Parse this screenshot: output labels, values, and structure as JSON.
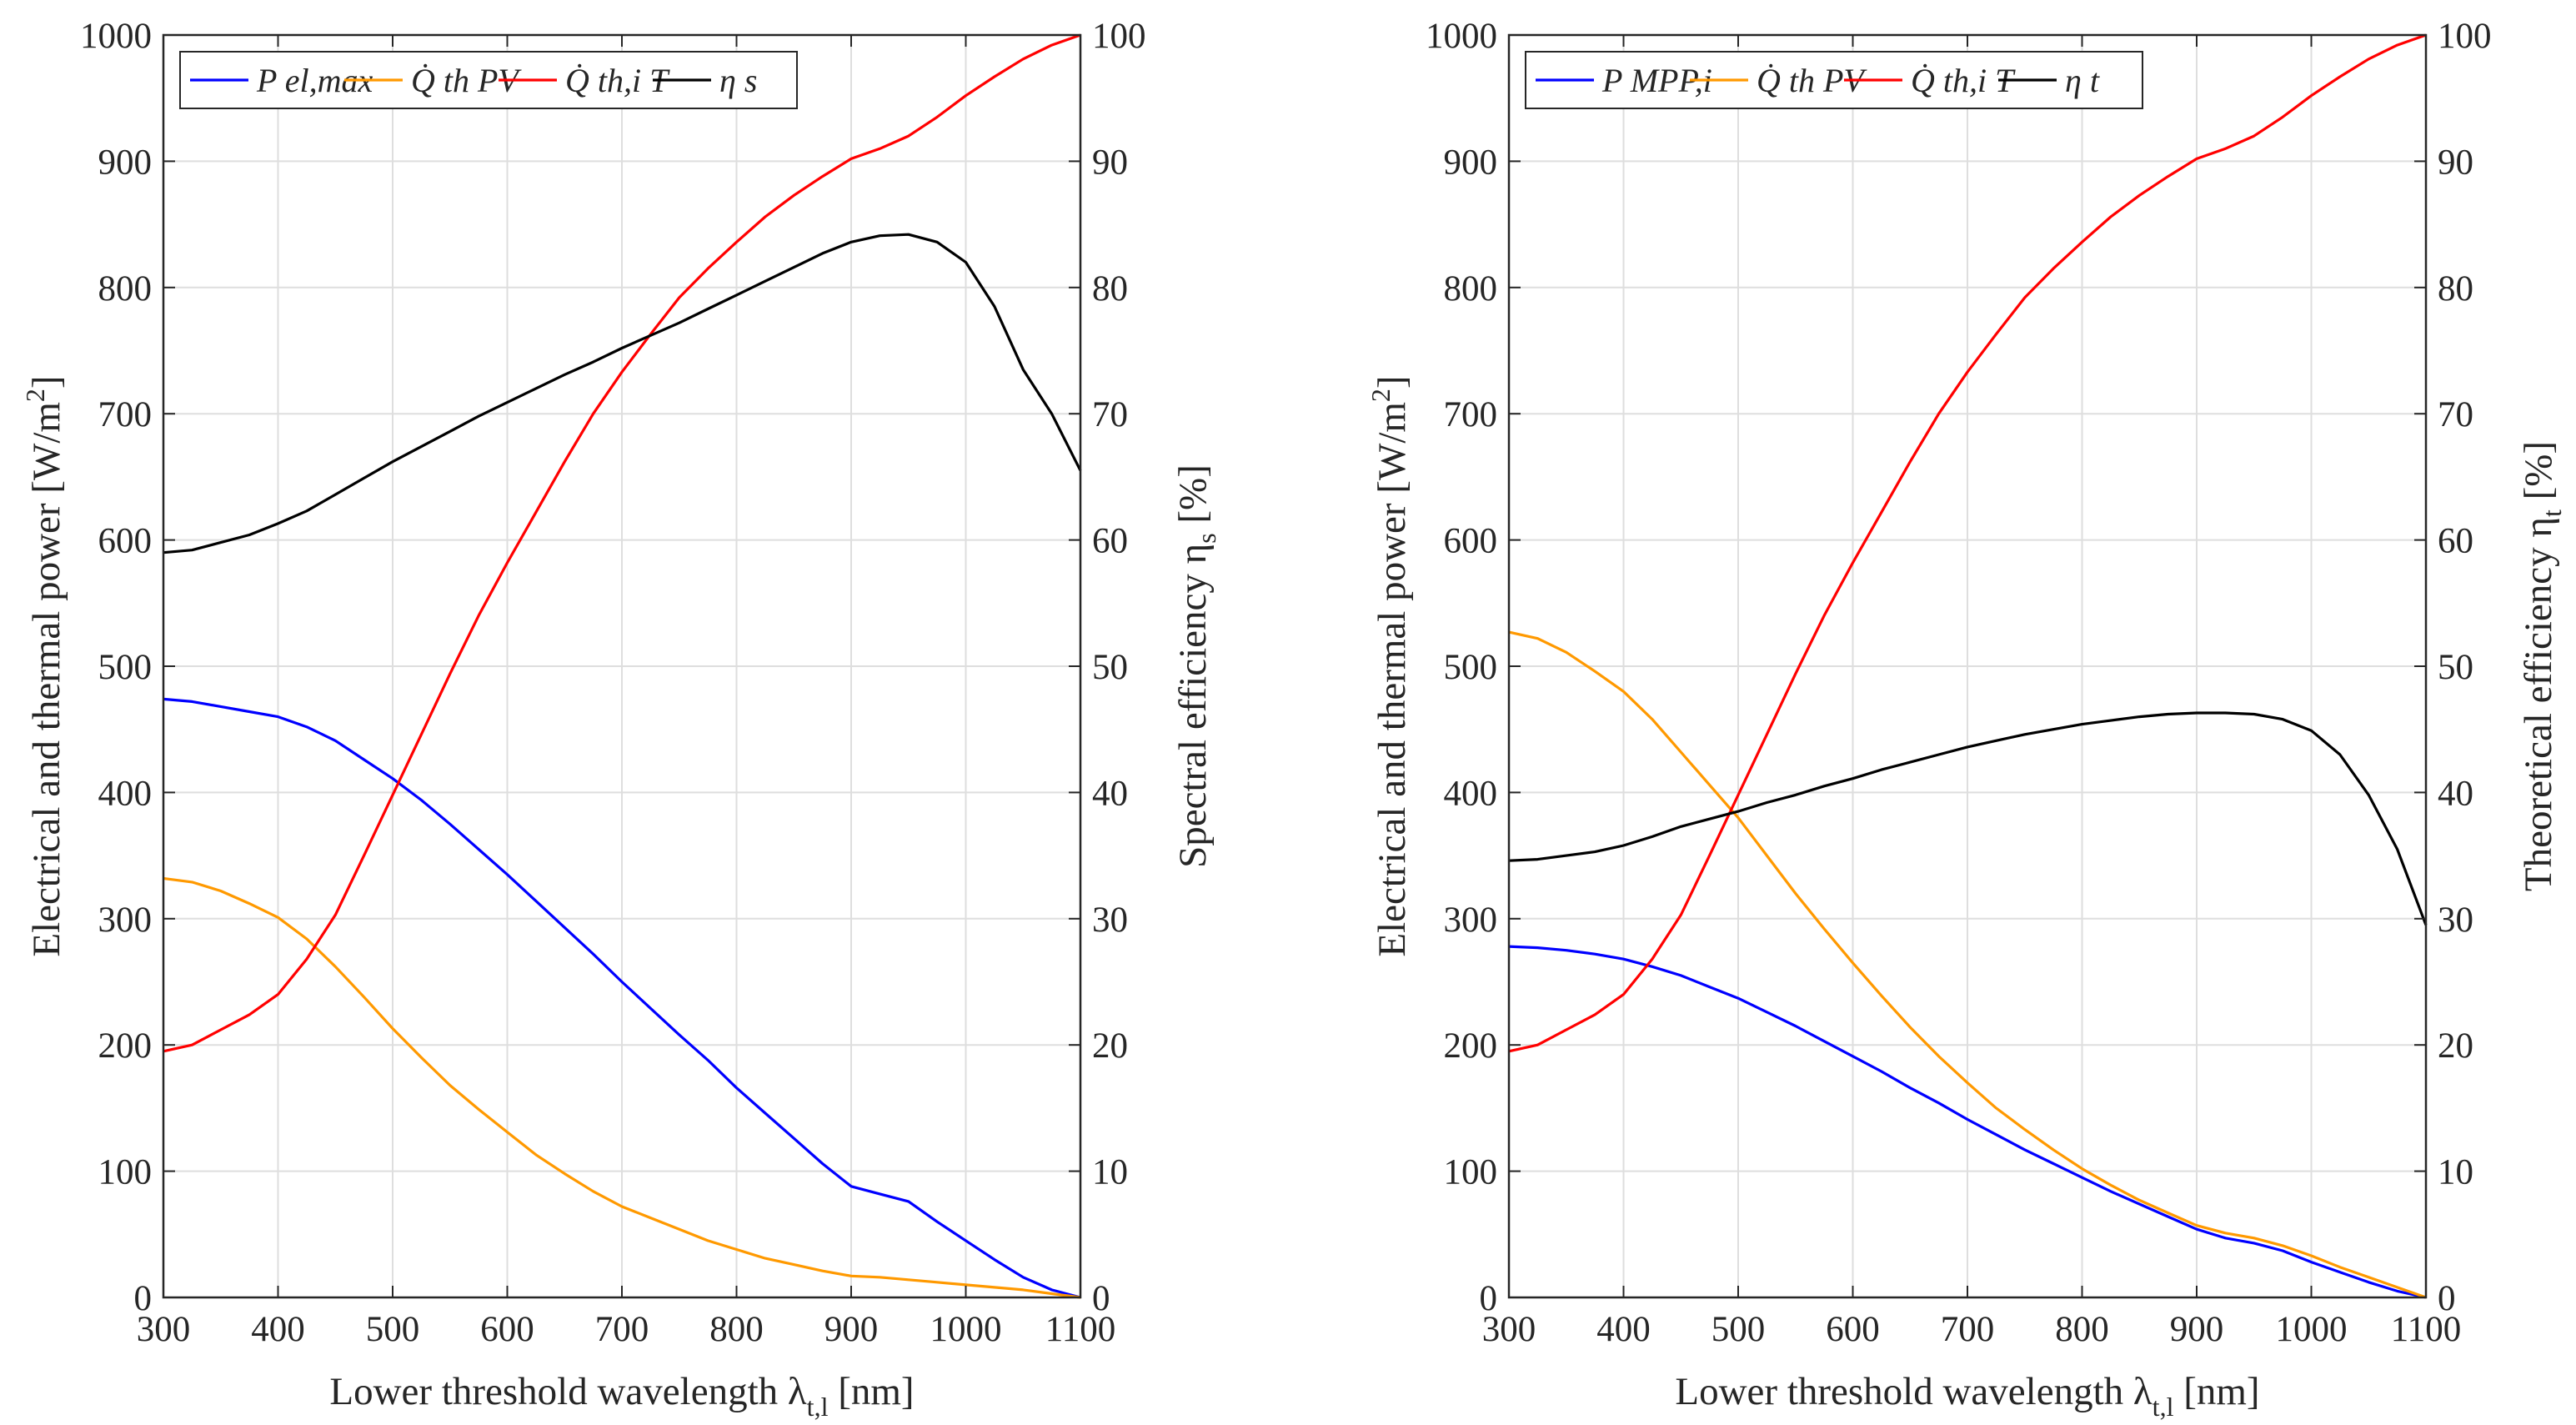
{
  "charts": [
    {
      "id": "left",
      "xlabel": "Lower threshold wavelength λt,l [nm]",
      "xlabel_main": "Lower threshold wavelength λ",
      "xlabel_sub": "t,l",
      "xlabel_tail": " [nm]",
      "ylabel_left": "Electrical and thermal power [W/m2]",
      "ylabel_left_main": "Electrical and thermal power [W/m",
      "ylabel_left_sup": "2",
      "ylabel_left_tail": "]",
      "ylabel_right": "Spectral efficiency ηs [%]",
      "ylabel_right_main": "Spectral efficiency η",
      "ylabel_right_sub": "s",
      "ylabel_right_tail": " [%]",
      "legend": [
        "P el,max",
        "Q̇ th PV",
        "Q̇ th,i T",
        "η s"
      ]
    },
    {
      "id": "right",
      "xlabel": "Lower threshold wavelength λt,l [nm]",
      "xlabel_main": "Lower threshold wavelength λ",
      "xlabel_sub": "t,l",
      "xlabel_tail": " [nm]",
      "ylabel_left": "Electrical and thermal power [W/m2]",
      "ylabel_left_main": "Electrical and thermal power [W/m",
      "ylabel_left_sup": "2",
      "ylabel_left_tail": "]",
      "ylabel_right": "Theoretical efficiency ηt [%]",
      "ylabel_right_main": "Theoretical efficiency η",
      "ylabel_right_sub": "t",
      "ylabel_right_tail": " [%]",
      "legend": [
        "P MPP,i",
        "Q̇ th PV",
        "Q̇ th,i T",
        "η t"
      ]
    }
  ],
  "chart_data": [
    {
      "type": "line",
      "x": [
        300,
        325,
        350,
        375,
        400,
        425,
        450,
        475,
        500,
        525,
        550,
        575,
        600,
        625,
        650,
        675,
        700,
        725,
        750,
        775,
        800,
        825,
        850,
        875,
        900,
        925,
        950,
        975,
        1000,
        1025,
        1050,
        1075,
        1100
      ],
      "xticks": [
        300,
        400,
        500,
        600,
        700,
        800,
        900,
        1000,
        1100
      ],
      "xlim": [
        300,
        1100
      ],
      "ylim_left": [
        0,
        1000
      ],
      "yticks_left": [
        0,
        100,
        200,
        300,
        400,
        500,
        600,
        700,
        800,
        900,
        1000
      ],
      "ylim_right": [
        0,
        100
      ],
      "yticks_right": [
        0,
        10,
        20,
        30,
        40,
        50,
        60,
        70,
        80,
        90,
        100
      ],
      "grid": true,
      "legend_position": "top-left",
      "series": [
        {
          "name": "P el,max",
          "axis": "left",
          "color": "#0000ff",
          "values": [
            474,
            472,
            468,
            464,
            460,
            452,
            441,
            426,
            411,
            394,
            375,
            355,
            335,
            314,
            293,
            272,
            250,
            229,
            208,
            188,
            166,
            146,
            126,
            106,
            88,
            82,
            76,
            60,
            45,
            30,
            16,
            6,
            0
          ]
        },
        {
          "name": "Q̇ th PV",
          "axis": "left",
          "color": "#ff9900",
          "values": [
            332,
            329,
            322,
            312,
            301,
            284,
            262,
            238,
            213,
            190,
            168,
            149,
            131,
            113,
            98,
            84,
            72,
            63,
            54,
            45,
            38,
            31,
            26,
            21,
            17,
            16,
            14,
            12,
            10,
            8,
            6,
            3,
            0
          ]
        },
        {
          "name": "Q̇ th,i T",
          "axis": "left",
          "color": "#ff0000",
          "values": [
            195,
            200,
            212,
            224,
            240,
            268,
            303,
            350,
            398,
            446,
            494,
            540,
            582,
            622,
            662,
            700,
            733,
            763,
            792,
            815,
            836,
            856,
            873,
            888,
            902,
            910,
            920,
            935,
            952,
            967,
            981,
            992,
            1000
          ]
        },
        {
          "name": "η s",
          "axis": "right",
          "color": "#000000",
          "values": [
            59,
            59.2,
            59.8,
            60.4,
            61.3,
            62.3,
            63.6,
            64.9,
            66.2,
            67.4,
            68.6,
            69.8,
            70.9,
            72.0,
            73.1,
            74.1,
            75.2,
            76.2,
            77.2,
            78.3,
            79.4,
            80.5,
            81.6,
            82.7,
            83.6,
            84.1,
            84.2,
            83.6,
            82.0,
            78.5,
            73.5,
            70.0,
            65.5
          ]
        }
      ]
    },
    {
      "type": "line",
      "x": [
        300,
        325,
        350,
        375,
        400,
        425,
        450,
        475,
        500,
        525,
        550,
        575,
        600,
        625,
        650,
        675,
        700,
        725,
        750,
        775,
        800,
        825,
        850,
        875,
        900,
        925,
        950,
        975,
        1000,
        1025,
        1050,
        1075,
        1100
      ],
      "xticks": [
        300,
        400,
        500,
        600,
        700,
        800,
        900,
        1000,
        1100
      ],
      "xlim": [
        300,
        1100
      ],
      "ylim_left": [
        0,
        1000
      ],
      "yticks_left": [
        0,
        100,
        200,
        300,
        400,
        500,
        600,
        700,
        800,
        900,
        1000
      ],
      "ylim_right": [
        0,
        100
      ],
      "yticks_right": [
        0,
        10,
        20,
        30,
        40,
        50,
        60,
        70,
        80,
        90,
        100
      ],
      "grid": true,
      "legend_position": "top-left",
      "series": [
        {
          "name": "P MPP,i",
          "axis": "left",
          "color": "#0000ff",
          "values": [
            278,
            277,
            275,
            272,
            268,
            262,
            255,
            246,
            237,
            226,
            215,
            203,
            191,
            179,
            166,
            154,
            141,
            129,
            117,
            106,
            95,
            84,
            74,
            64,
            54,
            47,
            43,
            37,
            28,
            20,
            12,
            5,
            0
          ]
        },
        {
          "name": "Q̇ th PV",
          "axis": "left",
          "color": "#ff9900",
          "values": [
            527,
            522,
            511,
            496,
            480,
            458,
            432,
            406,
            380,
            350,
            320,
            292,
            265,
            239,
            214,
            191,
            170,
            150,
            133,
            117,
            102,
            89,
            77,
            67,
            57,
            51,
            47,
            41,
            33,
            24,
            16,
            8,
            0
          ]
        },
        {
          "name": "Q̇ th,i T",
          "axis": "left",
          "color": "#ff0000",
          "values": [
            195,
            200,
            212,
            224,
            240,
            268,
            303,
            350,
            398,
            446,
            494,
            540,
            582,
            622,
            662,
            700,
            733,
            763,
            792,
            815,
            836,
            856,
            873,
            888,
            902,
            910,
            920,
            935,
            952,
            967,
            981,
            992,
            1000
          ]
        },
        {
          "name": "η t",
          "axis": "right",
          "color": "#000000",
          "values": [
            34.6,
            34.7,
            35.0,
            35.3,
            35.8,
            36.5,
            37.3,
            37.9,
            38.5,
            39.2,
            39.8,
            40.5,
            41.1,
            41.8,
            42.4,
            43.0,
            43.6,
            44.1,
            44.6,
            45.0,
            45.4,
            45.7,
            46.0,
            46.2,
            46.3,
            46.3,
            46.2,
            45.8,
            44.9,
            43.0,
            39.8,
            35.5,
            29.5
          ]
        }
      ]
    }
  ]
}
